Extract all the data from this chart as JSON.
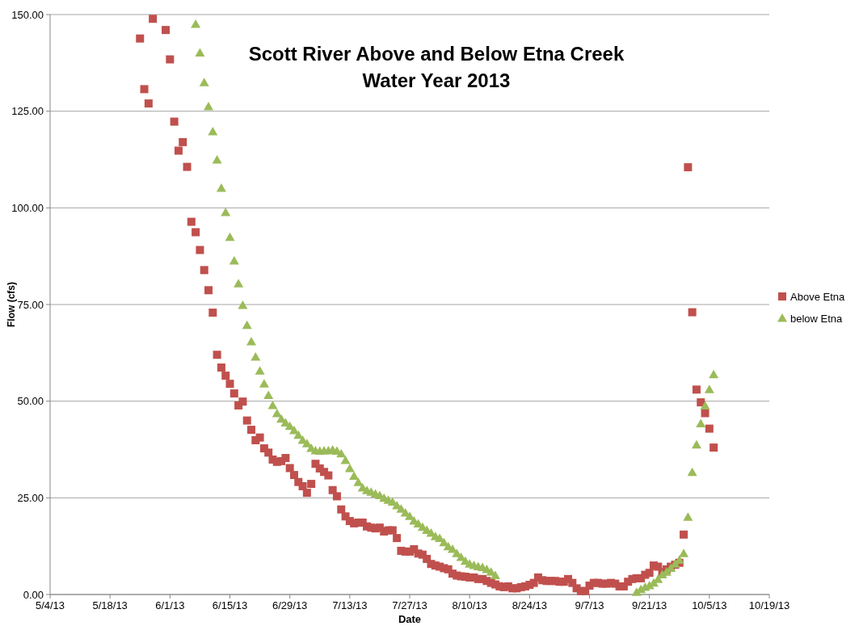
{
  "chart_data": {
    "type": "scatter",
    "title": "Scott River Above and Below Etna Creek\nWater Year 2013",
    "xlabel": "Date",
    "ylabel": "Flow (cfs)",
    "xlim": [
      "2013-05-04",
      "2013-10-19"
    ],
    "xticks": [
      {
        "value": "2013-05-04",
        "label": "5/4/13"
      },
      {
        "value": "2013-05-18",
        "label": "5/18/13"
      },
      {
        "value": "2013-06-01",
        "label": "6/1/13"
      },
      {
        "value": "2013-06-15",
        "label": "6/15/13"
      },
      {
        "value": "2013-06-29",
        "label": "6/29/13"
      },
      {
        "value": "2013-07-13",
        "label": "7/13/13"
      },
      {
        "value": "2013-07-27",
        "label": "7/27/13"
      },
      {
        "value": "2013-08-10",
        "label": "8/10/13"
      },
      {
        "value": "2013-08-24",
        "label": "8/24/13"
      },
      {
        "value": "2013-09-07",
        "label": "9/7/13"
      },
      {
        "value": "2013-09-21",
        "label": "9/21/13"
      },
      {
        "value": "2013-10-05",
        "label": "10/5/13"
      },
      {
        "value": "2013-10-19",
        "label": "10/19/13"
      }
    ],
    "ylim": [
      0,
      150
    ],
    "yticks": [
      {
        "value": 0,
        "label": "0.00"
      },
      {
        "value": 25,
        "label": "25.00"
      },
      {
        "value": 50,
        "label": "50.00"
      },
      {
        "value": 75,
        "label": "75.00"
      },
      {
        "value": 100,
        "label": "100.00"
      },
      {
        "value": 125,
        "label": "125.00"
      },
      {
        "value": 150,
        "label": "150.00"
      }
    ],
    "grid": "y",
    "legend": "right",
    "x": [
      "2013-05-25",
      "2013-05-26",
      "2013-05-27",
      "2013-05-28",
      "2013-05-31",
      "2013-06-01",
      "2013-06-02",
      "2013-06-03",
      "2013-06-04",
      "2013-06-05",
      "2013-06-06",
      "2013-06-07",
      "2013-06-08",
      "2013-06-09",
      "2013-06-10",
      "2013-06-11",
      "2013-06-12",
      "2013-06-13",
      "2013-06-14",
      "2013-06-15",
      "2013-06-16",
      "2013-06-17",
      "2013-06-18",
      "2013-06-19",
      "2013-06-20",
      "2013-06-21",
      "2013-06-22",
      "2013-06-23",
      "2013-06-24",
      "2013-06-25",
      "2013-06-26",
      "2013-06-27",
      "2013-06-28",
      "2013-06-29",
      "2013-06-30",
      "2013-07-01",
      "2013-07-02",
      "2013-07-03",
      "2013-07-04",
      "2013-07-05",
      "2013-07-06",
      "2013-07-07",
      "2013-07-08",
      "2013-07-09",
      "2013-07-10",
      "2013-07-11",
      "2013-07-12",
      "2013-07-13",
      "2013-07-14",
      "2013-07-15",
      "2013-07-16",
      "2013-07-17",
      "2013-07-18",
      "2013-07-19",
      "2013-07-20",
      "2013-07-21",
      "2013-07-22",
      "2013-07-23",
      "2013-07-24",
      "2013-07-25",
      "2013-07-26",
      "2013-07-27",
      "2013-07-28",
      "2013-07-29",
      "2013-07-30",
      "2013-07-31",
      "2013-08-01",
      "2013-08-02",
      "2013-08-03",
      "2013-08-04",
      "2013-08-05",
      "2013-08-06",
      "2013-08-07",
      "2013-08-08",
      "2013-08-09",
      "2013-08-10",
      "2013-08-11",
      "2013-08-12",
      "2013-08-13",
      "2013-08-14",
      "2013-08-15",
      "2013-08-16",
      "2013-08-17",
      "2013-08-18",
      "2013-08-19",
      "2013-08-20",
      "2013-08-21",
      "2013-08-22",
      "2013-08-23",
      "2013-08-24",
      "2013-08-25",
      "2013-08-26",
      "2013-08-27",
      "2013-08-28",
      "2013-08-29",
      "2013-08-30",
      "2013-08-31",
      "2013-09-01",
      "2013-09-02",
      "2013-09-03",
      "2013-09-04",
      "2013-09-05",
      "2013-09-06",
      "2013-09-07",
      "2013-09-08",
      "2013-09-09",
      "2013-09-10",
      "2013-09-11",
      "2013-09-12",
      "2013-09-13",
      "2013-09-14",
      "2013-09-15",
      "2013-09-16",
      "2013-09-17",
      "2013-09-18",
      "2013-09-19",
      "2013-09-20",
      "2013-09-21",
      "2013-09-22",
      "2013-09-23",
      "2013-09-24",
      "2013-09-25",
      "2013-09-26",
      "2013-09-27",
      "2013-09-28",
      "2013-09-29",
      "2013-09-30",
      "2013-10-01",
      "2013-10-02",
      "2013-10-03",
      "2013-10-04",
      "2013-10-05",
      "2013-10-06"
    ],
    "series": [
      {
        "name": "Above Etna",
        "color": "#c0504d",
        "marker": "square",
        "values": [
          143.8,
          130.7,
          127,
          148.9,
          146,
          138.4,
          122.3,
          114.8,
          117,
          110.6,
          96.4,
          93.7,
          89.1,
          83.9,
          78.7,
          72.9,
          62,
          58.7,
          56.6,
          54.5,
          52,
          48.9,
          49.9,
          45,
          42.6,
          39.9,
          40.6,
          37.8,
          36.7,
          34.9,
          34.3,
          34.5,
          35.3,
          32.7,
          30.9,
          29.1,
          28,
          26.3,
          28.6,
          33.8,
          32.6,
          31.7,
          30.8,
          27,
          25.4,
          22,
          20.2,
          19,
          18.4,
          18.6,
          18.6,
          17.6,
          17.3,
          17.1,
          17.3,
          16.3,
          16.6,
          16.6,
          14.6,
          11.3,
          11.1,
          11.1,
          11.7,
          10.6,
          10.3,
          9.2,
          7.9,
          7.5,
          7.2,
          6.8,
          6.5,
          5.4,
          4.9,
          4.7,
          4.6,
          4.4,
          4.4,
          4,
          4,
          3.5,
          3,
          2.6,
          2.1,
          1.9,
          2.1,
          1.6,
          1.6,
          1.9,
          2.1,
          2.5,
          3,
          4.4,
          3.7,
          3.5,
          3.5,
          3.5,
          3.3,
          3.3,
          4,
          3,
          1.6,
          0.9,
          0.9,
          2.3,
          3,
          3,
          2.8,
          2.8,
          3,
          2.8,
          2.1,
          2.1,
          3.3,
          4,
          4.2,
          4.2,
          5.1,
          5.6,
          7.5,
          7.2,
          5.8,
          6.5,
          7.2,
          7.7,
          8.2,
          15.5,
          110.5,
          73,
          53,
          49.7,
          46.9,
          42.9,
          38
        ]
      },
      {
        "name": "below Etna",
        "color": "#9bbb59",
        "marker": "triangle",
        "values": [
          null,
          null,
          null,
          null,
          null,
          null,
          null,
          null,
          null,
          null,
          null,
          147.5,
          140.1,
          132.4,
          126.2,
          119.7,
          112.4,
          105.1,
          98.8,
          92.4,
          86.3,
          80.4,
          74.8,
          69.6,
          65.4,
          61.4,
          57.8,
          54.5,
          51.5,
          48.9,
          46.8,
          45.4,
          44.4,
          43.5,
          42.4,
          41.2,
          39.9,
          39,
          37.8,
          37.2,
          37.1,
          37.2,
          37.2,
          37.4,
          37.1,
          36.4,
          34.7,
          32.6,
          30.6,
          29,
          27.6,
          26.9,
          26.5,
          26,
          25.6,
          24.9,
          24.4,
          23.9,
          23,
          22.1,
          21.1,
          20.2,
          19,
          18.3,
          17.4,
          16.6,
          15.9,
          15,
          14.5,
          13.4,
          12.4,
          11.7,
          10.6,
          9.6,
          8.6,
          7.9,
          7.5,
          7.2,
          7,
          6.5,
          5.8,
          4.9,
          null,
          null,
          null,
          null,
          null,
          null,
          null,
          null,
          null,
          null,
          null,
          null,
          null,
          null,
          null,
          null,
          null,
          null,
          null,
          null,
          null,
          null,
          null,
          null,
          null,
          null,
          null,
          null,
          null,
          null,
          null,
          null,
          0.6,
          1.3,
          1.9,
          2.3,
          3,
          3.9,
          5.1,
          5.8,
          6.8,
          7.9,
          8.9,
          10.6,
          20,
          31.6,
          38.7,
          44.2,
          48.8,
          53,
          56.9
        ]
      }
    ]
  }
}
